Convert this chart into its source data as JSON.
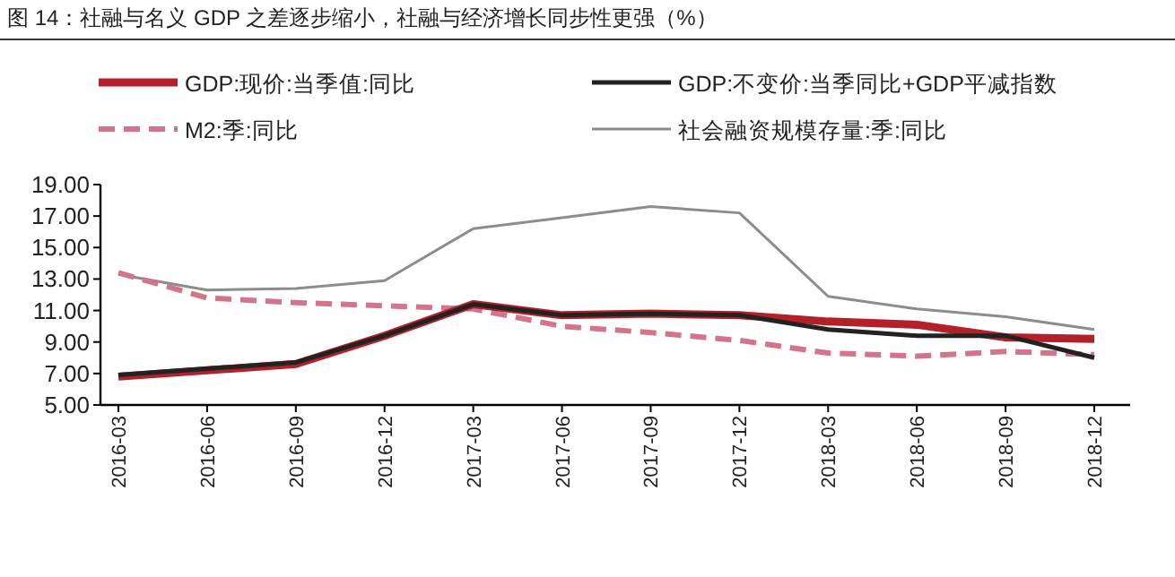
{
  "chart_data": {
    "type": "line",
    "title": "图 14：社融与名义 GDP 之差逐步缩小，社融与经济增长同步性更强（%）",
    "categories": [
      "2016-03",
      "2016-06",
      "2016-09",
      "2016-12",
      "2017-03",
      "2017-06",
      "2017-09",
      "2017-12",
      "2018-03",
      "2018-06",
      "2018-09",
      "2018-12"
    ],
    "series": [
      {
        "name": "GDP:现价:当季值:同比",
        "color": "#b3202a",
        "line_style": "solid",
        "values": [
          6.8,
          7.2,
          7.6,
          9.4,
          11.4,
          10.7,
          10.8,
          10.7,
          10.3,
          10.1,
          9.3,
          9.2
        ]
      },
      {
        "name": "GDP:不变价:当季同比+GDP平减指数",
        "color": "#222222",
        "line_style": "solid",
        "values": [
          6.9,
          7.3,
          7.7,
          9.4,
          11.4,
          10.7,
          10.8,
          10.7,
          9.8,
          9.4,
          9.4,
          8.0
        ]
      },
      {
        "name": "M2:季:同比",
        "color": "#d4748a",
        "line_style": "dashed",
        "values": [
          13.4,
          11.8,
          11.5,
          11.3,
          11.1,
          10.0,
          9.6,
          9.1,
          8.3,
          8.1,
          8.4,
          8.2
        ]
      },
      {
        "name": "社会融资规模存量:季:同比",
        "color": "#8c8c8c",
        "line_style": "solid",
        "values": [
          13.3,
          12.3,
          12.4,
          12.9,
          16.2,
          16.9,
          17.6,
          17.2,
          11.9,
          11.1,
          10.6,
          9.8
        ]
      }
    ],
    "ylim": [
      5,
      19
    ],
    "yticks": [
      {
        "value": 5,
        "label": "5.00"
      },
      {
        "value": 7,
        "label": "7.00"
      },
      {
        "value": 9,
        "label": "9.00"
      },
      {
        "value": 11,
        "label": "11.00"
      },
      {
        "value": 13,
        "label": "13.00"
      },
      {
        "value": 15,
        "label": "15.00"
      },
      {
        "value": 17,
        "label": "17.00"
      },
      {
        "value": 19,
        "label": "19.00"
      }
    ],
    "grid": false,
    "legend": "top",
    "marker": "none"
  }
}
